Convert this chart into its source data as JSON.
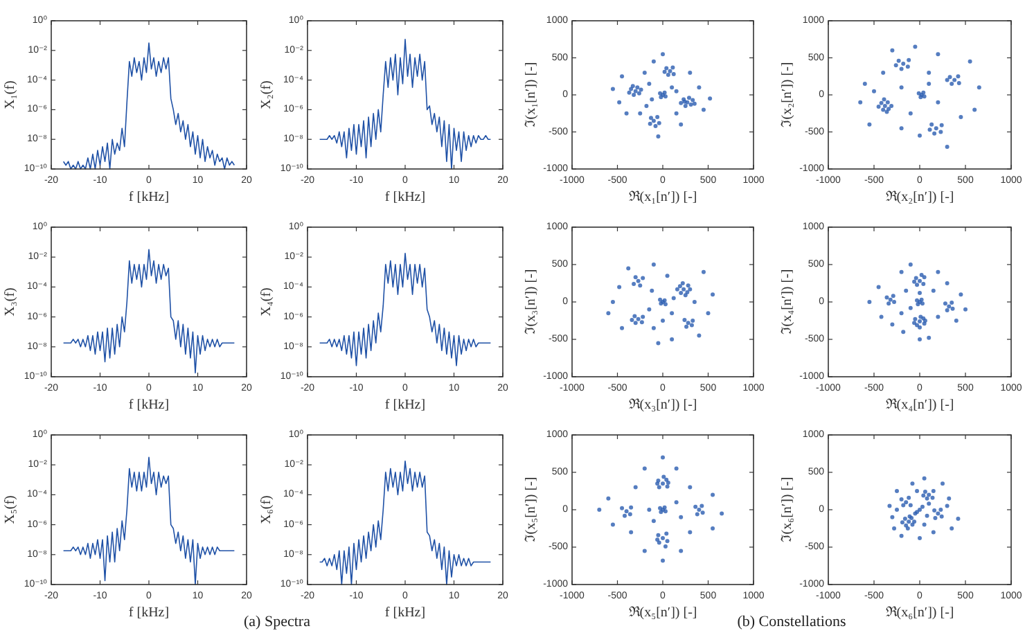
{
  "chart_data": [
    {
      "type": "line",
      "x": [
        -17.5,
        -17,
        -16.5,
        -16,
        -15.5,
        -15,
        -14.5,
        -14,
        -13.5,
        -13,
        -12.5,
        -12,
        -11.5,
        -11,
        -10.5,
        -10,
        -9.5,
        -9,
        -8.5,
        -8,
        -7.5,
        -7,
        -6.5,
        -6,
        -5.5,
        -5,
        -4.5,
        -4,
        -3.5,
        -3,
        -2.5,
        -2,
        -1.5,
        -1,
        -0.5,
        0,
        0.5,
        1,
        1.5,
        2,
        2.5,
        3,
        3.5,
        4,
        4.5,
        5,
        5.5,
        6,
        6.5,
        7,
        7.5,
        8,
        8.5,
        9,
        9.5,
        10,
        10.5,
        11,
        11.5,
        12,
        12.5,
        13,
        13.5,
        14,
        14.5,
        15,
        15.5,
        16,
        16.5,
        17,
        17.5
      ],
      "values": [
        3.2e-10,
        1.8e-10,
        3.2e-10,
        1e-10,
        1.8e-10,
        1e-10,
        3.2e-10,
        1e-10,
        1.8e-10,
        1e-10,
        5.6e-10,
        1e-10,
        1e-09,
        1e-10,
        1.8e-09,
        1.8e-10,
        3.2e-09,
        3.2e-10,
        5.6e-09,
        1e-10,
        1e-08,
        1e-09,
        5.6e-09,
        1.8e-09,
        5.6e-08,
        3.2e-09,
        3.2e-06,
        0.0018,
        0.00018,
        0.0032,
        0.00032,
        0.0018,
        0.0001,
        0.0032,
        0.00032,
        0.032,
        0.00056,
        0.0032,
        0.00018,
        0.0018,
        0.00032,
        0.0032,
        0.00056,
        0.0032,
        5.6e-06,
        1e-06,
        1e-07,
        5.6e-07,
        3.2e-08,
        1.8e-07,
        1e-08,
        1e-07,
        3.2e-09,
        3.2e-08,
        1e-09,
        1.8e-08,
        5.6e-10,
        1e-08,
        3.2e-10,
        3.2e-09,
        5.6e-10,
        1.8e-09,
        1.8e-10,
        1e-09,
        3.2e-10,
        5.6e-10,
        1e-10,
        5.6e-10,
        1.8e-10,
        3.2e-10,
        1.8e-10
      ],
      "color": "#1f51a6",
      "xlabel": "f [kHz]",
      "ylabel": "X₁(f)",
      "xlim": [
        -20,
        20
      ],
      "xticks": [
        -20,
        -10,
        0,
        10,
        20
      ],
      "ylim": [
        1e-10,
        1
      ],
      "yticks": [
        {
          "value": 1e-10,
          "label": "10⁻¹⁰"
        },
        {
          "value": 1e-08,
          "label": "10⁻⁸"
        },
        {
          "value": 1e-06,
          "label": "10⁻⁶"
        },
        {
          "value": 0.0001,
          "label": "10⁻⁴"
        },
        {
          "value": 0.01,
          "label": "10⁻²"
        },
        {
          "value": 1,
          "label": "10⁰"
        }
      ],
      "log": true
    },
    {
      "type": "line",
      "x": [
        -17.5,
        -17,
        -16.5,
        -16,
        -15.5,
        -15,
        -14.5,
        -14,
        -13.5,
        -13,
        -12.5,
        -12,
        -11.5,
        -11,
        -10.5,
        -10,
        -9.5,
        -9,
        -8.5,
        -8,
        -7.5,
        -7,
        -6.5,
        -6,
        -5.5,
        -5,
        -4.5,
        -4,
        -3.5,
        -3,
        -2.5,
        -2,
        -1.5,
        -1,
        -0.5,
        0,
        0.5,
        1,
        1.5,
        2,
        2.5,
        3,
        3.5,
        4,
        4.5,
        5,
        5.5,
        6,
        6.5,
        7,
        7.5,
        8,
        8.5,
        9,
        9.5,
        10,
        10.5,
        11,
        11.5,
        12,
        12.5,
        13,
        13.5,
        14,
        14.5,
        15,
        15.5,
        16,
        16.5,
        17,
        17.5
      ],
      "values": [
        1e-08,
        1e-08,
        1e-08,
        1e-08,
        1.8e-08,
        1e-08,
        1.8e-08,
        5.6e-09,
        3.2e-08,
        3.2e-09,
        3.2e-08,
        5.6e-10,
        5.6e-08,
        1.8e-09,
        1e-07,
        1e-09,
        1e-07,
        3.2e-09,
        1.8e-07,
        5.6e-10,
        3.2e-07,
        3.2e-09,
        5.6e-07,
        1e-08,
        1e-06,
        3.2e-08,
        1e-05,
        0.0018,
        3.2e-05,
        0.0032,
        0.0001,
        0.0056,
        1e-05,
        0.0032,
        5.6e-05,
        0.056,
        0.00018,
        0.0056,
        3.2e-05,
        0.0032,
        0.00018,
        0.0056,
        0.0001,
        0.0018,
        1e-06,
        1.8e-06,
        1e-07,
        5.6e-07,
        3.2e-08,
        3.2e-07,
        3.2e-09,
        1.8e-07,
        3.2e-10,
        1e-07,
        1e-10,
        5.6e-08,
        1.8e-09,
        3.2e-08,
        3.2e-10,
        3.2e-08,
        1.8e-09,
        1.8e-08,
        3.2e-09,
        1.8e-08,
        5.6e-09,
        1.8e-08,
        1e-08,
        1e-08,
        1.8e-08,
        1e-08,
        1e-08
      ],
      "color": "#1f51a6",
      "xlabel": "f [kHz]",
      "ylabel": "X₂(f)",
      "xlim": [
        -20,
        20
      ],
      "xticks": [
        -20,
        -10,
        0,
        10,
        20
      ],
      "ylim": [
        1e-10,
        1
      ],
      "yticks": [
        {
          "value": 1e-10,
          "label": "10⁻¹⁰"
        },
        {
          "value": 1e-08,
          "label": "10⁻⁸"
        },
        {
          "value": 1e-06,
          "label": "10⁻⁶"
        },
        {
          "value": 0.0001,
          "label": "10⁻⁴"
        },
        {
          "value": 0.01,
          "label": "10⁻²"
        },
        {
          "value": 1,
          "label": "10⁰"
        }
      ],
      "log": true
    },
    {
      "type": "scatter",
      "x": [
        -300,
        -350,
        -260,
        -320,
        -280,
        -370,
        -240,
        -330,
        0,
        -30,
        30,
        20,
        -20,
        270,
        230,
        310,
        250,
        330,
        200,
        290,
        350,
        240,
        80,
        40,
        120,
        60,
        110,
        20,
        -100,
        -60,
        -140,
        -80,
        -130,
        -40,
        -550,
        -480,
        -450,
        -200,
        -150,
        -180,
        -250,
        100,
        150,
        400,
        450,
        520,
        0,
        -50,
        300,
        -100,
        200,
        -400,
        150,
        -120
      ],
      "values": [
        50,
        80,
        20,
        0,
        100,
        30,
        70,
        120,
        0,
        20,
        -20,
        30,
        -30,
        -100,
        -60,
        -130,
        -150,
        -70,
        -110,
        -40,
        -120,
        -90,
        320,
        360,
        280,
        270,
        370,
        310,
        -350,
        -300,
        -390,
        -420,
        -310,
        -380,
        80,
        -100,
        250,
        300,
        150,
        -150,
        -250,
        100,
        -250,
        100,
        -200,
        -50,
        550,
        -560,
        300,
        450,
        -400,
        -250,
        50,
        -60
      ],
      "color": "#2a5db0",
      "marker": "circle",
      "xlabel": "ℜ(x₁[n′]) [-]",
      "ylabel": "ℑ(x₁[n′]) [-]",
      "xlim": [
        -1000,
        1000
      ],
      "xticks": [
        -1000,
        -500,
        0,
        500,
        1000
      ],
      "ylim": [
        -1000,
        1000
      ],
      "yticks": [
        -1000,
        -500,
        0,
        500,
        1000
      ]
    },
    {
      "type": "scatter",
      "x": [
        -380,
        -420,
        -340,
        -400,
        -350,
        -450,
        -310,
        -390,
        -360,
        20,
        -10,
        50,
        10,
        40,
        380,
        330,
        430,
        350,
        420,
        300,
        -180,
        -230,
        -130,
        -200,
        -120,
        -260,
        180,
        130,
        230,
        160,
        240,
        110,
        -650,
        -600,
        -550,
        -400,
        -300,
        -50,
        100,
        200,
        550,
        650,
        600,
        450,
        300,
        0,
        -200,
        -100,
        200,
        -200,
        100,
        -500
      ],
      "values": [
        -150,
        -110,
        -190,
        -200,
        -100,
        -160,
        -150,
        -60,
        -230,
        0,
        20,
        -20,
        -30,
        30,
        200,
        240,
        160,
        150,
        250,
        200,
        420,
        460,
        380,
        350,
        470,
        400,
        -450,
        -400,
        -500,
        -520,
        -410,
        -470,
        -100,
        150,
        -400,
        300,
        600,
        650,
        300,
        550,
        450,
        100,
        -200,
        -300,
        -700,
        -550,
        -450,
        -250,
        -100,
        100,
        150,
        50
      ],
      "color": "#2a5db0",
      "marker": "circle",
      "xlabel": "ℜ(x₂[n′]) [-]",
      "ylabel": "ℑ(x₂[n′]) [-]",
      "xlim": [
        -1000,
        1000
      ],
      "xticks": [
        -1000,
        -500,
        0,
        500,
        1000
      ],
      "ylim": [
        -1000,
        1000
      ],
      "yticks": [
        -1000,
        -500,
        0,
        500,
        1000
      ]
    },
    {
      "type": "line",
      "x": [
        -17.5,
        -17,
        -16.5,
        -16,
        -15.5,
        -15,
        -14.5,
        -14,
        -13.5,
        -13,
        -12.5,
        -12,
        -11.5,
        -11,
        -10.5,
        -10,
        -9.5,
        -9,
        -8.5,
        -8,
        -7.5,
        -7,
        -6.5,
        -6,
        -5.5,
        -5,
        -4.5,
        -4,
        -3.5,
        -3,
        -2.5,
        -2,
        -1.5,
        -1,
        -0.5,
        0,
        0.5,
        1,
        1.5,
        2,
        2.5,
        3,
        3.5,
        4,
        4.5,
        5,
        5.5,
        6,
        6.5,
        7,
        7.5,
        8,
        8.5,
        9,
        9.5,
        10,
        10.5,
        11,
        11.5,
        12,
        12.5,
        13,
        13.5,
        14,
        14.5,
        15,
        15.5,
        16,
        16.5,
        17,
        17.5
      ],
      "values": [
        1.8e-08,
        1.8e-08,
        1.8e-08,
        1.8e-08,
        3.2e-08,
        1.8e-08,
        3.2e-08,
        1e-08,
        3.2e-08,
        1e-08,
        5.6e-08,
        5.6e-09,
        5.6e-08,
        3.2e-09,
        1e-07,
        5.6e-09,
        1e-07,
        1e-09,
        1.8e-07,
        1.8e-09,
        1.8e-07,
        3.2e-09,
        3.2e-07,
        1e-08,
        1e-06,
        1e-07,
        1e-05,
        0.0056,
        0.00018,
        0.0032,
        0.00032,
        0.0032,
        0.0001,
        0.0032,
        0.00032,
        0.032,
        0.00056,
        0.0056,
        0.00018,
        0.0032,
        0.00032,
        0.0032,
        0.00056,
        0.0018,
        1e-06,
        5.6e-07,
        3.2e-08,
        5.6e-07,
        1e-08,
        3.2e-07,
        3.2e-09,
        1.8e-07,
        1.8e-09,
        1e-07,
        1.8e-10,
        5.6e-08,
        3.2e-09,
        5.6e-08,
        5.6e-09,
        3.2e-08,
        1e-08,
        3.2e-08,
        1e-08,
        3.2e-08,
        1e-08,
        1.8e-08,
        1.8e-08,
        1.8e-08,
        1.8e-08,
        1.8e-08,
        1.8e-08
      ],
      "color": "#1f51a6",
      "xlabel": "f [kHz]",
      "ylabel": "X₃(f)",
      "xlim": [
        -20,
        20
      ],
      "xticks": [
        -20,
        -10,
        0,
        10,
        20
      ],
      "ylim": [
        1e-10,
        1
      ],
      "yticks": [
        {
          "value": 1e-10,
          "label": "10⁻¹⁰"
        },
        {
          "value": 1e-08,
          "label": "10⁻⁸"
        },
        {
          "value": 1e-06,
          "label": "10⁻⁶"
        },
        {
          "value": 0.0001,
          "label": "10⁻⁴"
        },
        {
          "value": 0.01,
          "label": "10⁻²"
        },
        {
          "value": 1,
          "label": "10⁰"
        }
      ],
      "log": true
    },
    {
      "type": "line",
      "x": [
        -17.5,
        -17,
        -16.5,
        -16,
        -15.5,
        -15,
        -14.5,
        -14,
        -13.5,
        -13,
        -12.5,
        -12,
        -11.5,
        -11,
        -10.5,
        -10,
        -9.5,
        -9,
        -8.5,
        -8,
        -7.5,
        -7,
        -6.5,
        -6,
        -5.5,
        -5,
        -4.5,
        -4,
        -3.5,
        -3,
        -2.5,
        -2,
        -1.5,
        -1,
        -0.5,
        0,
        0.5,
        1,
        1.5,
        2,
        2.5,
        3,
        3.5,
        4,
        4.5,
        5,
        5.5,
        6,
        6.5,
        7,
        7.5,
        8,
        8.5,
        9,
        9.5,
        10,
        10.5,
        11,
        11.5,
        12,
        12.5,
        13,
        13.5,
        14,
        14.5,
        15,
        15.5,
        16,
        16.5,
        17,
        17.5
      ],
      "values": [
        1.8e-08,
        1.8e-08,
        1.8e-08,
        1.8e-08,
        3.2e-08,
        1e-08,
        3.2e-08,
        1e-08,
        3.2e-08,
        5.6e-09,
        5.6e-08,
        3.2e-09,
        5.6e-08,
        1.8e-09,
        1e-07,
        5.6e-10,
        1e-07,
        3.2e-09,
        1.8e-07,
        1.8e-09,
        3.2e-07,
        5.6e-09,
        5.6e-07,
        1.8e-08,
        1.8e-06,
        1e-07,
        5.6e-06,
        0.0032,
        0.00018,
        0.0056,
        0.0001,
        0.0032,
        3.2e-05,
        0.0032,
        0.0001,
        0.018,
        0.00032,
        0.0032,
        3.2e-05,
        0.0032,
        0.00018,
        0.0032,
        0.0001,
        0.0018,
        3.2e-06,
        1e-06,
        1e-07,
        5.6e-07,
        1.8e-08,
        3.2e-07,
        5.6e-09,
        1.8e-07,
        3.2e-09,
        1e-07,
        1.8e-09,
        5.6e-08,
        5.6e-10,
        5.6e-08,
        3.2e-09,
        3.2e-08,
        5.6e-09,
        3.2e-08,
        1e-08,
        3.2e-08,
        1e-08,
        1.8e-08,
        1.8e-08,
        1.8e-08,
        1.8e-08,
        1.8e-08,
        1.8e-08
      ],
      "color": "#1f51a6",
      "xlabel": "f [kHz]",
      "ylabel": "X₄(f)",
      "xlim": [
        -20,
        20
      ],
      "xticks": [
        -20,
        -10,
        0,
        10,
        20
      ],
      "ylim": [
        1e-10,
        1
      ],
      "yticks": [
        {
          "value": 1e-10,
          "label": "10⁻¹⁰"
        },
        {
          "value": 1e-08,
          "label": "10⁻⁸"
        },
        {
          "value": 1e-06,
          "label": "10⁻⁶"
        },
        {
          "value": 0.0001,
          "label": "10⁻⁴"
        },
        {
          "value": 0.01,
          "label": "10⁻²"
        },
        {
          "value": 1,
          "label": "10⁰"
        }
      ],
      "log": true
    },
    {
      "type": "scatter",
      "x": [
        230,
        190,
        270,
        200,
        280,
        250,
        160,
        300,
        220,
        0,
        -30,
        30,
        20,
        -20,
        -270,
        -320,
        -220,
        -250,
        -300,
        -270,
        -310,
        -230,
        -300,
        -220,
        -340,
        280,
        240,
        320,
        260,
        330,
        -550,
        -480,
        -450,
        -380,
        -100,
        50,
        450,
        550,
        500,
        400,
        100,
        -100,
        -150,
        -120,
        100,
        120,
        -600,
        0,
        350,
        -50
      ],
      "values": [
        170,
        210,
        130,
        120,
        220,
        90,
        170,
        170,
        250,
        0,
        30,
        -30,
        20,
        -20,
        280,
        240,
        320,
        220,
        330,
        -230,
        -190,
        -270,
        -280,
        -200,
        -240,
        -280,
        -240,
        -310,
        -330,
        -250,
        0,
        200,
        -350,
        450,
        500,
        350,
        400,
        100,
        -150,
        -450,
        -500,
        -350,
        -100,
        150,
        -150,
        50,
        -150,
        -250,
        0,
        -550
      ],
      "color": "#2a5db0",
      "marker": "circle",
      "xlabel": "ℜ(x₃[n′]) [-]",
      "ylabel": "ℑ(x₃[n′]) [-]",
      "xlim": [
        -1000,
        1000
      ],
      "xticks": [
        -1000,
        -500,
        0,
        500,
        1000
      ],
      "ylim": [
        -1000,
        1000
      ],
      "yticks": [
        -1000,
        -500,
        0,
        500,
        1000
      ]
    },
    {
      "type": "scatter",
      "x": [
        0,
        -40,
        40,
        -30,
        50,
        20,
        -60,
        0,
        -30,
        30,
        20,
        -20,
        0,
        -50,
        50,
        -30,
        40,
        -60,
        60,
        0,
        10,
        -320,
        -360,
        -280,
        -340,
        -290,
        320,
        280,
        360,
        300,
        350,
        -550,
        -450,
        -420,
        -200,
        -150,
        -200,
        -180,
        100,
        200,
        150,
        200,
        450,
        500,
        400,
        -100,
        0,
        -300,
        300,
        0,
        -100
      ],
      "values": [
        280,
        320,
        240,
        230,
        330,
        360,
        270,
        0,
        20,
        -20,
        30,
        -30,
        -260,
        -230,
        -290,
        -310,
        -220,
        -280,
        -250,
        -340,
        -200,
        30,
        60,
        0,
        -20,
        80,
        -60,
        -20,
        -90,
        -110,
        -10,
        0,
        200,
        -200,
        400,
        150,
        -150,
        -400,
        -480,
        400,
        150,
        -200,
        100,
        -100,
        -250,
        500,
        -500,
        -300,
        250,
        120,
        -80
      ],
      "color": "#2a5db0",
      "marker": "circle",
      "xlabel": "ℜ(x₄[n′]) [-]",
      "ylabel": "ℑ(x₄[n′]) [-]",
      "xlim": [
        -1000,
        1000
      ],
      "xticks": [
        -1000,
        -500,
        0,
        500,
        1000
      ],
      "ylim": [
        -1000,
        1000
      ],
      "yticks": [
        -1000,
        -500,
        0,
        500,
        1000
      ]
    },
    {
      "type": "line",
      "x": [
        -17.5,
        -17,
        -16.5,
        -16,
        -15.5,
        -15,
        -14.5,
        -14,
        -13.5,
        -13,
        -12.5,
        -12,
        -11.5,
        -11,
        -10.5,
        -10,
        -9.5,
        -9,
        -8.5,
        -8,
        -7.5,
        -7,
        -6.5,
        -6,
        -5.5,
        -5,
        -4.5,
        -4,
        -3.5,
        -3,
        -2.5,
        -2,
        -1.5,
        -1,
        -0.5,
        0,
        0.5,
        1,
        1.5,
        2,
        2.5,
        3,
        3.5,
        4,
        4.5,
        5,
        5.5,
        6,
        6.5,
        7,
        7.5,
        8,
        8.5,
        9,
        9.5,
        10,
        10.5,
        11,
        11.5,
        12,
        12.5,
        13,
        13.5,
        14,
        14.5,
        15,
        15.5,
        16,
        16.5,
        17,
        17.5
      ],
      "values": [
        1.8e-08,
        1.8e-08,
        1.8e-08,
        1.8e-08,
        3.2e-08,
        1.8e-08,
        3.2e-08,
        1e-08,
        3.2e-08,
        1e-08,
        5.6e-08,
        5.6e-09,
        5.6e-08,
        1e-08,
        1e-07,
        5.6e-09,
        1e-07,
        1.8e-10,
        1.8e-07,
        3.2e-09,
        3.2e-07,
        3.2e-09,
        5.6e-07,
        1.8e-08,
        1.8e-06,
        1e-07,
        1e-05,
        0.0056,
        0.00032,
        0.0032,
        0.00018,
        0.0032,
        0.00018,
        0.0032,
        0.00032,
        0.032,
        0.00056,
        0.0032,
        0.0001,
        0.0032,
        0.00032,
        0.0018,
        0.00056,
        0.0018,
        1e-06,
        5.6e-07,
        5.6e-08,
        3.2e-07,
        1.8e-08,
        1.8e-07,
        5.6e-09,
        1e-07,
        3.2e-09,
        1e-07,
        1e-10,
        5.6e-08,
        5.6e-09,
        3.2e-08,
        1e-08,
        3.2e-08,
        1e-08,
        3.2e-08,
        1e-08,
        3.2e-08,
        1.8e-08,
        1.8e-08,
        1.8e-08,
        1.8e-08,
        1.8e-08,
        1.8e-08,
        1.8e-08
      ],
      "color": "#1f51a6",
      "xlabel": "f [kHz]",
      "ylabel": "X₅(f)",
      "xlim": [
        -20,
        20
      ],
      "xticks": [
        -20,
        -10,
        0,
        10,
        20
      ],
      "ylim": [
        1e-10,
        1
      ],
      "yticks": [
        {
          "value": 1e-10,
          "label": "10⁻¹⁰"
        },
        {
          "value": 1e-08,
          "label": "10⁻⁸"
        },
        {
          "value": 1e-06,
          "label": "10⁻⁶"
        },
        {
          "value": 0.0001,
          "label": "10⁻⁴"
        },
        {
          "value": 0.01,
          "label": "10⁻²"
        },
        {
          "value": 1,
          "label": "10⁰"
        }
      ],
      "log": true,
      "annotations": [
        "(a) Spectra"
      ]
    },
    {
      "type": "line",
      "x": [
        -17.5,
        -17,
        -16.5,
        -16,
        -15.5,
        -15,
        -14.5,
        -14,
        -13.5,
        -13,
        -12.5,
        -12,
        -11.5,
        -11,
        -10.5,
        -10,
        -9.5,
        -9,
        -8.5,
        -8,
        -7.5,
        -7,
        -6.5,
        -6,
        -5.5,
        -5,
        -4.5,
        -4,
        -3.5,
        -3,
        -2.5,
        -2,
        -1.5,
        -1,
        -0.5,
        0,
        0.5,
        1,
        1.5,
        2,
        2.5,
        3,
        3.5,
        4,
        4.5,
        5,
        5.5,
        6,
        6.5,
        7,
        7.5,
        8,
        8.5,
        9,
        9.5,
        10,
        10.5,
        11,
        11.5,
        12,
        12.5,
        13,
        13.5,
        14,
        14.5,
        15,
        15.5,
        16,
        16.5,
        17,
        17.5
      ],
      "values": [
        3.2e-09,
        3.2e-09,
        5.6e-09,
        1.8e-09,
        5.6e-09,
        1.8e-09,
        1e-08,
        1e-09,
        1.8e-08,
        1e-10,
        1.8e-08,
        5.6e-10,
        3.2e-08,
        1e-10,
        5.6e-08,
        1e-09,
        1e-07,
        3.2e-09,
        1.8e-07,
        5.6e-09,
        3.2e-07,
        1.8e-08,
        1e-06,
        3.2e-08,
        1.8e-06,
        1e-07,
        1e-05,
        0.0032,
        0.00018,
        0.0056,
        0.00032,
        0.0032,
        0.0001,
        0.0032,
        0.00018,
        0.018,
        0.00056,
        0.0056,
        0.00018,
        0.0032,
        0.00032,
        0.0032,
        0.00032,
        0.0018,
        3.2e-07,
        1.8e-07,
        1.8e-08,
        1e-07,
        5.6e-09,
        5.6e-08,
        1e-09,
        3.2e-08,
        1e-10,
        1.8e-08,
        3.2e-10,
        1e-08,
        1.8e-09,
        1e-08,
        1.8e-09,
        5.6e-09,
        1.8e-09,
        5.6e-09,
        1.8e-09,
        3.2e-09,
        3.2e-09,
        3.2e-09,
        3.2e-09,
        3.2e-09,
        3.2e-09,
        3.2e-09,
        3.2e-09
      ],
      "color": "#1f51a6",
      "xlabel": "f [kHz]",
      "ylabel": "X₆(f)",
      "xlim": [
        -20,
        20
      ],
      "xticks": [
        -20,
        -10,
        0,
        10,
        20
      ],
      "ylim": [
        1e-10,
        1
      ],
      "yticks": [
        {
          "value": 1e-10,
          "label": "10⁻¹⁰"
        },
        {
          "value": 1e-08,
          "label": "10⁻⁸"
        },
        {
          "value": 1e-06,
          "label": "10⁻⁶"
        },
        {
          "value": 0.0001,
          "label": "10⁻⁴"
        },
        {
          "value": 0.01,
          "label": "10⁻²"
        },
        {
          "value": 1,
          "label": "10⁰"
        }
      ],
      "log": true
    },
    {
      "type": "scatter",
      "x": [
        0,
        -50,
        50,
        -40,
        40,
        -60,
        60,
        10,
        0,
        -30,
        30,
        20,
        -20,
        0,
        -50,
        50,
        -40,
        40,
        -60,
        30,
        -400,
        -450,
        -360,
        -420,
        -350,
        400,
        360,
        440,
        380,
        430,
        -700,
        -600,
        -550,
        -300,
        -200,
        0,
        150,
        300,
        550,
        650,
        550,
        300,
        200,
        0,
        -200,
        -350,
        -150,
        150,
        -100,
        200
      ],
      "values": [
        350,
        390,
        310,
        300,
        400,
        350,
        360,
        440,
        0,
        20,
        -20,
        30,
        -30,
        -380,
        -340,
        -420,
        -440,
        -320,
        -400,
        -490,
        -20,
        20,
        -60,
        -80,
        30,
        0,
        40,
        -40,
        -60,
        50,
        0,
        150,
        -200,
        300,
        550,
        700,
        550,
        300,
        200,
        -50,
        -250,
        -300,
        -550,
        -680,
        -550,
        -300,
        0,
        100,
        -150,
        -100
      ],
      "color": "#2a5db0",
      "marker": "circle",
      "xlabel": "ℜ(x₅[n′]) [-]",
      "ylabel": "ℑ(x₅[n′]) [-]",
      "xlim": [
        -1000,
        1000
      ],
      "xticks": [
        -1000,
        -500,
        0,
        500,
        1000
      ],
      "ylim": [
        -1000,
        1000
      ],
      "yticks": [
        -1000,
        -500,
        0,
        500,
        1000
      ],
      "annotations": [
        "(b) Constellations"
      ]
    },
    {
      "type": "scatter",
      "x": [
        -120,
        -160,
        -80,
        -150,
        -90,
        -190,
        -60,
        -130,
        -110,
        100,
        60,
        140,
        80,
        150,
        40,
        -150,
        -200,
        -100,
        -180,
        -120,
        200,
        160,
        240,
        230,
        170,
        0,
        30,
        -30,
        -330,
        -300,
        -250,
        -80,
        50,
        250,
        320,
        420,
        350,
        150,
        0,
        -200,
        -280,
        50,
        -30,
        300,
        100,
        -50,
        80,
        -250
      ],
      "values": [
        -160,
        -120,
        -200,
        -210,
        -110,
        -170,
        -160,
        -250,
        -90,
        200,
        240,
        160,
        150,
        250,
        190,
        100,
        140,
        60,
        60,
        160,
        -50,
        -10,
        -90,
        0,
        -110,
        0,
        40,
        -30,
        50,
        -100,
        250,
        350,
        420,
        350,
        150,
        -120,
        -250,
        -300,
        -380,
        -350,
        -250,
        -200,
        250,
        50,
        80,
        -50,
        -80,
        0
      ],
      "color": "#2a5db0",
      "marker": "circle",
      "xlabel": "ℜ(x₆[n′]) [-]",
      "ylabel": "ℑ(x₆[n′]) [-]",
      "xlim": [
        -1000,
        1000
      ],
      "xticks": [
        -1000,
        -500,
        0,
        500,
        1000
      ],
      "ylim": [
        -1000,
        1000
      ],
      "yticks": [
        -1000,
        -500,
        0,
        500,
        1000
      ]
    }
  ]
}
